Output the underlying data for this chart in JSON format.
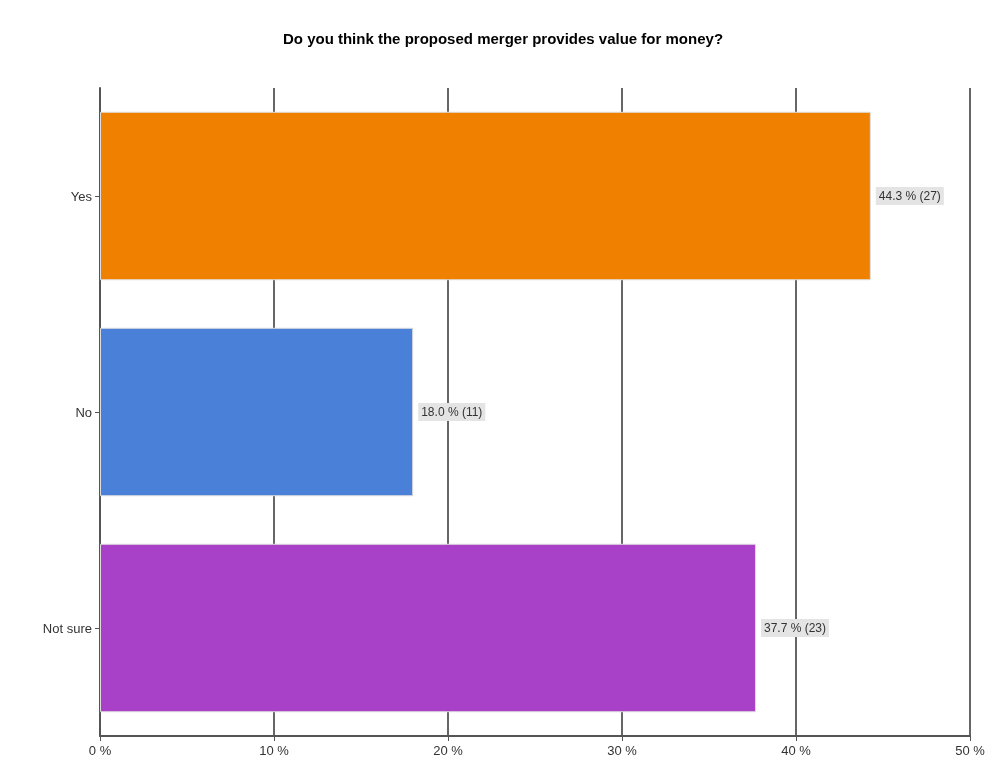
{
  "chart_data": {
    "type": "bar",
    "orientation": "horizontal",
    "title": "Do you think the proposed merger provides value for money?",
    "categories": [
      "Yes",
      "No",
      "Not sure"
    ],
    "values": [
      44.3,
      18.0,
      37.7
    ],
    "colors": [
      "#f08000",
      "#4a80d8",
      "#a840c8"
    ],
    "value_labels": [
      "44.3 % (27)",
      "18.0 % (11)",
      "37.7 % (23)"
    ],
    "xlim": [
      0,
      50
    ],
    "xticks": [
      {
        "value": 0,
        "label": "0 %"
      },
      {
        "value": 10,
        "label": "10 %"
      },
      {
        "value": 20,
        "label": "20 %"
      },
      {
        "value": 30,
        "label": "30 %"
      },
      {
        "value": 40,
        "label": "40 %"
      },
      {
        "value": 50,
        "label": "50 %"
      }
    ],
    "grid": "x"
  }
}
